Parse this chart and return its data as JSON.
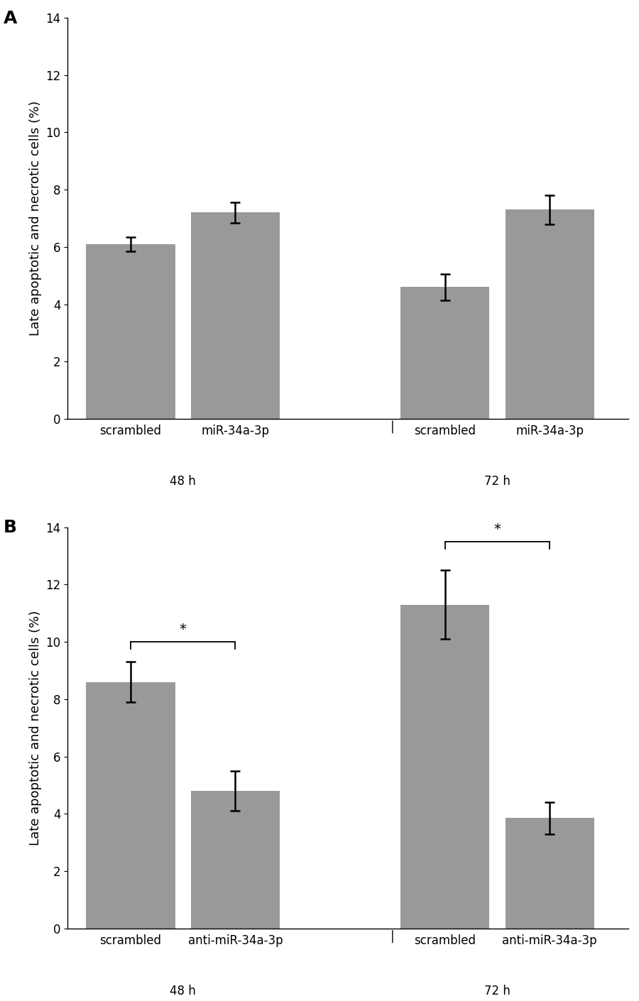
{
  "panel_A": {
    "label": "A",
    "bars": [
      {
        "x_label": "scrambled",
        "group": "48 h",
        "value": 6.1,
        "sem": 0.25
      },
      {
        "x_label": "miR-34a-3p",
        "group": "48 h",
        "value": 7.2,
        "sem": 0.35
      },
      {
        "x_label": "scrambled",
        "group": "72 h",
        "value": 4.6,
        "sem": 0.45
      },
      {
        "x_label": "miR-34a-3p",
        "group": "72 h",
        "value": 7.3,
        "sem": 0.5
      }
    ],
    "ylim": [
      0,
      14
    ],
    "yticks": [
      0,
      2,
      4,
      6,
      8,
      10,
      12,
      14
    ],
    "ylabel": "Late apoptotic and necrotic cells (%)",
    "bar_color": "#999999",
    "significance_lines": [],
    "group_labels": [
      [
        "48 h",
        1
      ],
      [
        "72 h",
        4
      ]
    ],
    "separator_x": 2.5
  },
  "panel_B": {
    "label": "B",
    "bars": [
      {
        "x_label": "scrambled",
        "group": "48 h",
        "value": 8.6,
        "sem": 0.7
      },
      {
        "x_label": "anti-miR-34a-3p",
        "group": "48 h",
        "value": 4.8,
        "sem": 0.7
      },
      {
        "x_label": "scrambled",
        "group": "72 h",
        "value": 11.3,
        "sem": 1.2
      },
      {
        "x_label": "anti-miR-34a-3p",
        "group": "72 h",
        "value": 3.85,
        "sem": 0.55
      }
    ],
    "ylim": [
      0,
      14
    ],
    "yticks": [
      0,
      2,
      4,
      6,
      8,
      10,
      12,
      14
    ],
    "ylabel": "Late apoptotic and necrotic cells (%)",
    "bar_color": "#999999",
    "significance_lines": [
      {
        "bar_idx1": 0,
        "bar_idx2": 1,
        "y_line": 10.0,
        "y_star": 10.2,
        "star": "*"
      },
      {
        "bar_idx1": 2,
        "bar_idx2": 3,
        "y_line": 13.5,
        "y_star": 13.7,
        "star": "*"
      }
    ],
    "group_labels": [
      [
        "48 h",
        1
      ],
      [
        "72 h",
        4
      ]
    ],
    "separator_x": 2.5
  },
  "positions": [
    0,
    1,
    3,
    4
  ],
  "bar_width": 0.85,
  "bar_color": "#999999",
  "background_color": "#ffffff",
  "label_fontsize": 13,
  "tick_fontsize": 12,
  "group_label_fontsize": 12,
  "panel_label_fontsize": 18,
  "xlim": [
    -0.6,
    4.75
  ]
}
